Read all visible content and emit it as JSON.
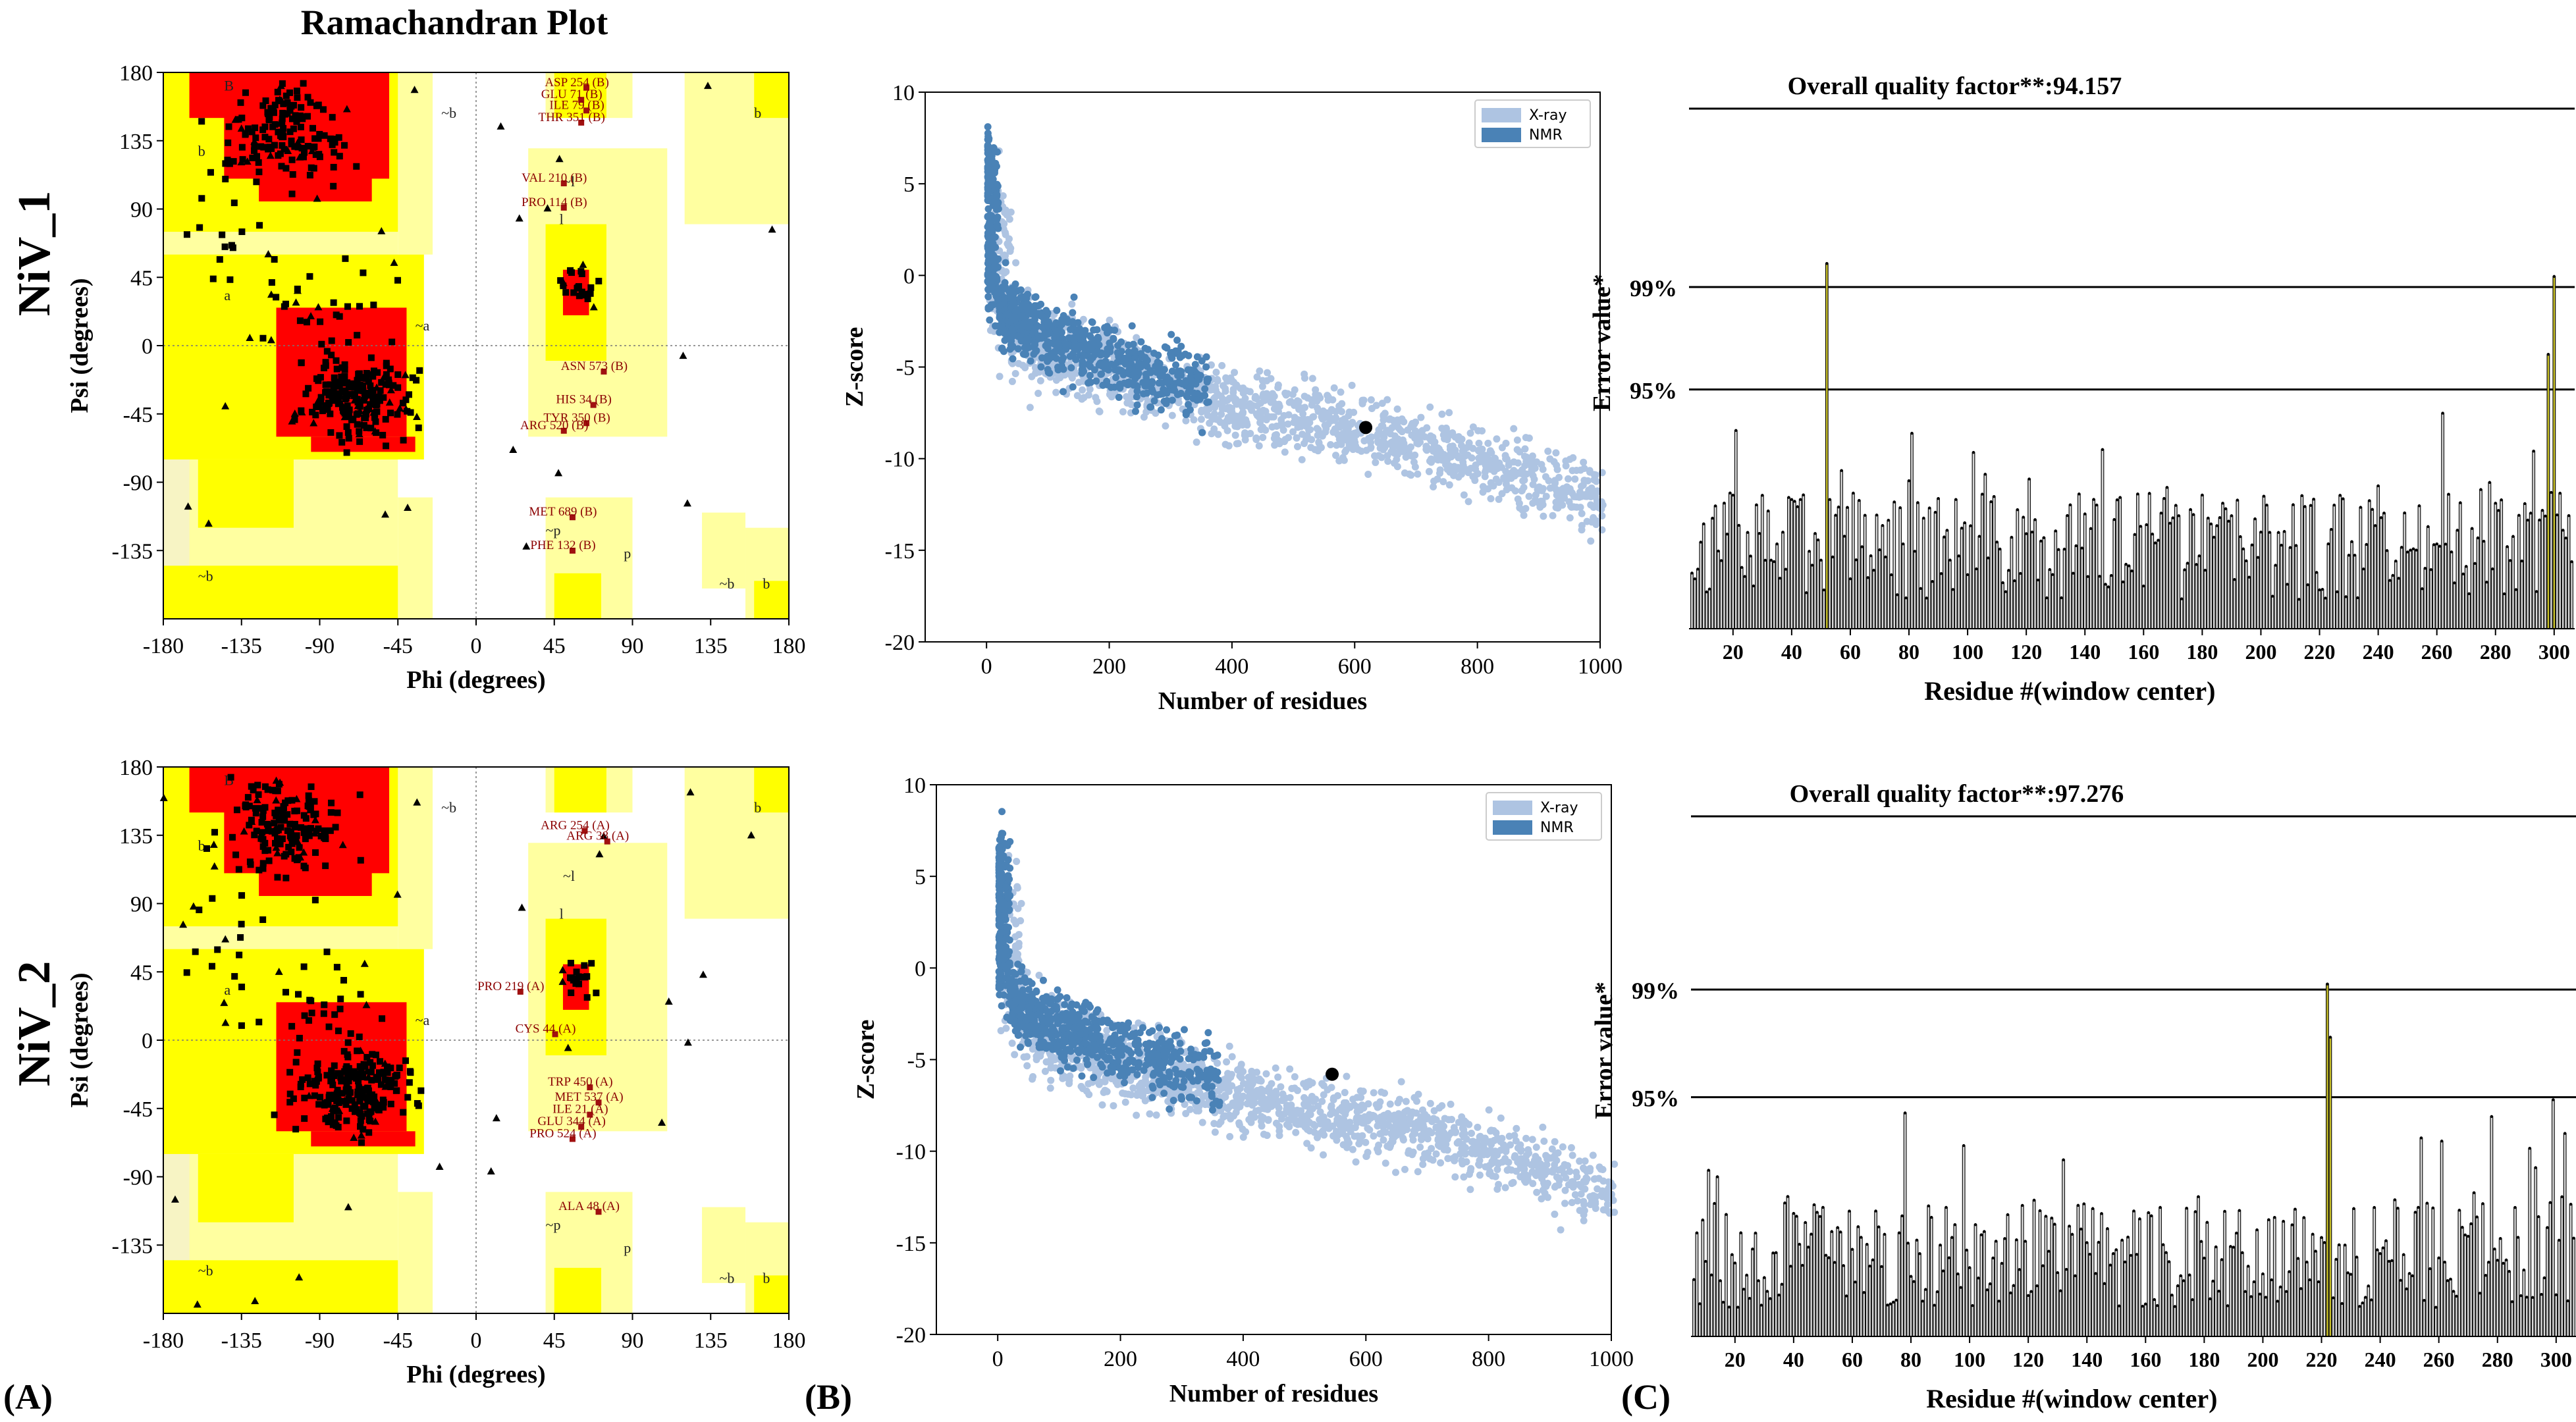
{
  "figure": {
    "rama_title": "Ramachandran Plot",
    "row_labels": [
      "NiV_1",
      "NiV_2"
    ],
    "panel_labels": [
      "(A)",
      "(B)",
      "(C)"
    ],
    "colors": {
      "core": "#ff0000",
      "allowed": "#ffff00",
      "generous": "#ffffa0",
      "generous2": "#f7f4c4",
      "xray": "#aec4e2",
      "nmr": "#4a82b6",
      "bar_normal": "#d9d9d9",
      "bar_flag": "#c8c028"
    }
  },
  "chart_data": [
    {
      "type": "scatter",
      "id": "rama_1",
      "title": "Ramachandran Plot",
      "xlabel": "Phi (degrees)",
      "ylabel": "Psi (degrees)",
      "xlim": [
        -180,
        180
      ],
      "ylim": [
        -180,
        180
      ],
      "xticks": [
        "-180",
        "-135",
        "-90",
        "-45",
        "0",
        "45",
        "90",
        "135",
        "180"
      ],
      "yticks": [
        "180",
        "135",
        "90",
        "45",
        "0",
        "-45",
        "-90",
        "-135"
      ],
      "region_labels": [
        "B",
        "b",
        "a",
        "~b",
        "~a",
        "l",
        "~l",
        "p",
        "~p",
        "~b",
        "~b",
        "b",
        "b"
      ],
      "annotations": [
        {
          "text": "ASP 254 (B)",
          "phi": 58,
          "psi": 171
        },
        {
          "text": "GLU 71 (B)",
          "phi": 55,
          "psi": 163
        },
        {
          "text": "ILE 79 (B)",
          "phi": 58,
          "psi": 156
        },
        {
          "text": "THR 351 (B)",
          "phi": 55,
          "psi": 148
        },
        {
          "text": "VAL 210 (B)",
          "phi": 45,
          "psi": 108
        },
        {
          "text": "PRO 114 (B)",
          "phi": 45,
          "psi": 92
        },
        {
          "text": "ASN 573 (B)",
          "phi": 68,
          "psi": -16
        },
        {
          "text": "HIS 34 (B)",
          "phi": 62,
          "psi": -38
        },
        {
          "text": "TYR 350 (B)",
          "phi": 58,
          "psi": -50
        },
        {
          "text": "ARG 520 (B)",
          "phi": 45,
          "psi": -55
        },
        {
          "text": "MET 689 (B)",
          "phi": 50,
          "psi": -112
        },
        {
          "text": "PHE 132 (B)",
          "phi": 50,
          "psi": -134
        }
      ]
    },
    {
      "type": "scatter",
      "id": "zscore_1",
      "xlabel": "Number of residues",
      "ylabel": "Z-score",
      "xlim": [
        -100,
        1000
      ],
      "ylim": [
        -20,
        10
      ],
      "xticks": [
        "0",
        "200",
        "400",
        "600",
        "800",
        "1000"
      ],
      "yticks": [
        "10",
        "5",
        "0",
        "-5",
        "-10",
        "-15",
        "-20"
      ],
      "legend": [
        "X-ray",
        "NMR"
      ],
      "legend_position": "top-right",
      "highlight_point": {
        "x": 618,
        "y": -8.3
      }
    },
    {
      "type": "bar",
      "id": "errat_1",
      "title": "Overall quality factor**:94.157",
      "xlabel": "Residue #(window center)",
      "ylabel": "Error value*",
      "xlim": [
        5,
        307
      ],
      "xticks": [
        "20",
        "40",
        "60",
        "80",
        "100",
        "120",
        "140",
        "160",
        "180",
        "200",
        "220",
        "240",
        "260",
        "280",
        "300"
      ],
      "reference_lines": [
        "99%",
        "95%"
      ],
      "flagged_residues": [
        52,
        298,
        300
      ]
    },
    {
      "type": "scatter",
      "id": "rama_2",
      "xlabel": "Phi (degrees)",
      "ylabel": "Psi (degrees)",
      "xlim": [
        -180,
        180
      ],
      "ylim": [
        -180,
        180
      ],
      "xticks": [
        "-180",
        "-135",
        "-90",
        "-45",
        "0",
        "45",
        "90",
        "135",
        "180"
      ],
      "yticks": [
        "180",
        "135",
        "90",
        "45",
        "0",
        "-45",
        "-90",
        "-135"
      ],
      "region_labels": [
        "B",
        "b",
        "a",
        "~b",
        "~a",
        "l",
        "~l",
        "p",
        "~p",
        "~b",
        "~b",
        "b",
        "b"
      ],
      "annotations": [
        {
          "text": "ARG 254 (A)",
          "phi": 57,
          "psi": 139
        },
        {
          "text": "ARG 38 (A)",
          "phi": 70,
          "psi": 132
        },
        {
          "text": "PRO 219 (A)",
          "phi": 20,
          "psi": 33
        },
        {
          "text": "CYS 44 (A)",
          "phi": 40,
          "psi": 5
        },
        {
          "text": "TRP 450 (A)",
          "phi": 60,
          "psi": -30
        },
        {
          "text": "MET 537 (A)",
          "phi": 65,
          "psi": -40
        },
        {
          "text": "ILE 21 (A)",
          "phi": 60,
          "psi": -48
        },
        {
          "text": "GLU 344 (A)",
          "phi": 55,
          "psi": -56
        },
        {
          "text": "PRO 524 (A)",
          "phi": 50,
          "psi": -64
        },
        {
          "text": "ALA 48 (A)",
          "phi": 65,
          "psi": -112
        }
      ]
    },
    {
      "type": "scatter",
      "id": "zscore_2",
      "xlabel": "Number of residues",
      "ylabel": "Z-score",
      "xlim": [
        -100,
        1000
      ],
      "ylim": [
        -20,
        10
      ],
      "xticks": [
        "0",
        "200",
        "400",
        "600",
        "800",
        "1000"
      ],
      "yticks": [
        "10",
        "5",
        "0",
        "-5",
        "-10",
        "-15",
        "-20"
      ],
      "legend": [
        "X-ray",
        "NMR"
      ],
      "legend_position": "top-right",
      "highlight_point": {
        "x": 545,
        "y": -5.8
      }
    },
    {
      "type": "bar",
      "id": "errat_2",
      "title": "Overall quality factor**:97.276",
      "xlabel": "Residue #(window center)",
      "ylabel": "Error value*",
      "xlim": [
        5,
        307
      ],
      "xticks": [
        "20",
        "40",
        "60",
        "80",
        "100",
        "120",
        "140",
        "160",
        "180",
        "200",
        "220",
        "240",
        "260",
        "280",
        "300"
      ],
      "reference_lines": [
        "99%",
        "95%"
      ],
      "flagged_residues": [
        222,
        223
      ]
    }
  ]
}
